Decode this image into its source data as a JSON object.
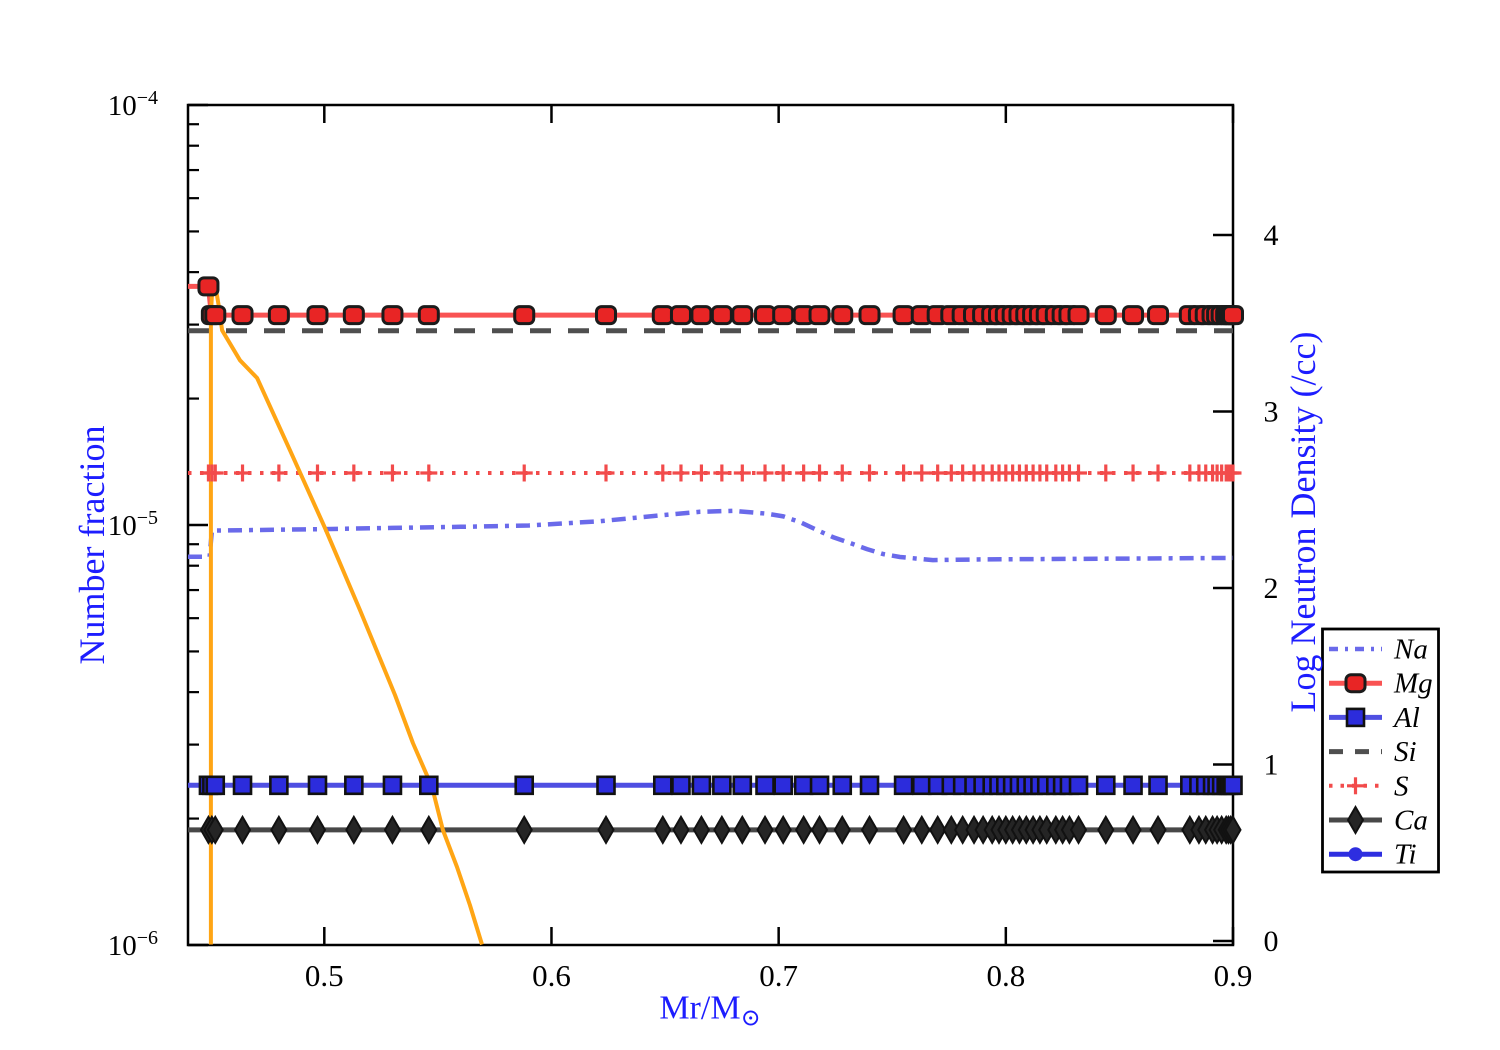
{
  "chart_data": {
    "type": "line",
    "title": "",
    "xlabel": "Mr/M⊙",
    "xlabel_main": "Mr/M",
    "xlabel_sub": "⊙",
    "ylabel_left": "Number fraction",
    "ylabel_right": "Log Neutron Density (/cc)",
    "x_range": [
      0.44,
      0.9
    ],
    "x_ticks": [
      0.5,
      0.6,
      0.7,
      0.8,
      0.9
    ],
    "x_tick_labels": [
      "0.5",
      "0.6",
      "0.7",
      "0.8",
      "0.9"
    ],
    "y_left_scale": "log",
    "y_left_range": [
      1e-06,
      0.0001
    ],
    "y_left_tick_exponents": [
      -4,
      -5,
      -6
    ],
    "y_right_range": [
      -0.02,
      4.76
    ],
    "y_right_ticks": [
      0,
      1,
      2,
      3,
      4
    ],
    "grid": false,
    "legend_position": "outside-right-bottom",
    "legend_labels": [
      "Na",
      "Mg",
      "Al",
      "Si",
      "S",
      "Ca",
      "Ti"
    ],
    "zones_x": [
      0.449,
      0.4505,
      0.452,
      0.464,
      0.48,
      0.497,
      0.513,
      0.53,
      0.546,
      0.588,
      0.624,
      0.649,
      0.657,
      0.666,
      0.675,
      0.684,
      0.694,
      0.702,
      0.711,
      0.718,
      0.728,
      0.74,
      0.755,
      0.763,
      0.77,
      0.776,
      0.781,
      0.786,
      0.79,
      0.794,
      0.797,
      0.8,
      0.803,
      0.806,
      0.809,
      0.812,
      0.815,
      0.818,
      0.822,
      0.825,
      0.828,
      0.832,
      0.844,
      0.856,
      0.867,
      0.881,
      0.885,
      0.888,
      0.891,
      0.893,
      0.895,
      0.897,
      0.898,
      0.899,
      0.9
    ],
    "series": [
      {
        "name": "Na",
        "axis": "left",
        "color": "#6a6aea",
        "style": "dashdot",
        "marker": "none",
        "x": [
          0.44,
          0.4495,
          0.4505,
          0.47,
          0.5,
          0.53,
          0.56,
          0.59,
          0.6214,
          0.6509,
          0.6654,
          0.68,
          0.695,
          0.7021,
          0.7094,
          0.7169,
          0.7239,
          0.7314,
          0.7389,
          0.7459,
          0.7534,
          0.7679,
          0.79,
          0.82,
          0.86,
          0.9
        ],
        "values": [
          8.4e-06,
          8.4e-06,
          9.7e-06,
          9.73e-06,
          9.78e-06,
          9.84e-06,
          9.9e-06,
          9.97e-06,
          1.021e-05,
          1.058e-05,
          1.075e-05,
          1.081e-05,
          1.064e-05,
          1.048e-05,
          1.016e-05,
          9.73e-06,
          9.36e-06,
          9.06e-06,
          8.76e-06,
          8.53e-06,
          8.39e-06,
          8.25e-06,
          8.28e-06,
          8.3e-06,
          8.32e-06,
          8.35e-06
        ]
      },
      {
        "name": "Mg",
        "axis": "left",
        "color": "#f95353",
        "style": "solid",
        "marker": "rounded-square",
        "marker_fill": "#e82525",
        "marker_edge": "#1b1b1b",
        "x": [
          0.44,
          0.449,
          0.4503,
          0.9
        ],
        "values": [
          3.7e-05,
          3.7e-05,
          3.16e-05,
          3.16e-05
        ],
        "marker_value_default": 3.16e-05,
        "marker_value_overrides": {
          "0": 3.7e-05
        }
      },
      {
        "name": "Al",
        "axis": "left",
        "color": "#4f4fe2",
        "style": "solid",
        "marker": "square",
        "marker_fill": "#2c2cdc",
        "marker_edge": "#111111",
        "x": [
          0.44,
          0.9
        ],
        "values": [
          2.4e-06,
          2.4e-06
        ],
        "marker_value_default": 2.4e-06
      },
      {
        "name": "Si",
        "axis": "left",
        "color": "#4f4f4f",
        "style": "dashed",
        "marker": "none",
        "x": [
          0.44,
          0.9
        ],
        "values": [
          2.9e-05,
          2.9e-05
        ]
      },
      {
        "name": "S",
        "axis": "left",
        "color": "#f24b4b",
        "style": "dotted",
        "marker": "plus",
        "marker_fill": "#f24b4b",
        "x": [
          0.44,
          0.9
        ],
        "values": [
          1.33e-05,
          1.33e-05
        ],
        "marker_value_default": 1.33e-05
      },
      {
        "name": "Ca",
        "axis": "left",
        "color": "#484848",
        "style": "solid",
        "marker": "diamond",
        "marker_fill": "#252525",
        "marker_edge": "#111111",
        "x": [
          0.44,
          0.9
        ],
        "values": [
          1.88e-06,
          1.88e-06
        ],
        "marker_value_default": 1.88e-06
      },
      {
        "name": "Ti",
        "axis": "left",
        "color": "#2e2ee0",
        "style": "solid",
        "marker": "dot",
        "marker_fill": "#2e2ee0",
        "legend_only": true,
        "note": "below plotted range"
      }
    ],
    "neutron_density_series": {
      "name": "neutron-density",
      "axis": "right",
      "color": "#ffa514",
      "style": "solid",
      "x": [
        0.4501,
        0.4501,
        0.4507,
        0.4514,
        0.4522,
        0.4535,
        0.455,
        0.4629,
        0.4704,
        0.4849,
        0.5003,
        0.5157,
        0.5311,
        0.539,
        0.5474,
        0.5522,
        0.5584,
        0.5641,
        0.5694
      ],
      "values": [
        -0.02,
        3.55,
        3.7,
        3.73,
        3.7,
        3.6,
        3.46,
        3.29,
        3.19,
        2.78,
        2.34,
        1.875,
        1.394,
        1.122,
        0.873,
        0.629,
        0.419,
        0.204,
        -0.02
      ]
    },
    "colors": {
      "axis_label_blue": "#1d1dff",
      "tick_label_black": "#000000",
      "orange_line": "#ffa514",
      "frame": "#000000"
    }
  }
}
